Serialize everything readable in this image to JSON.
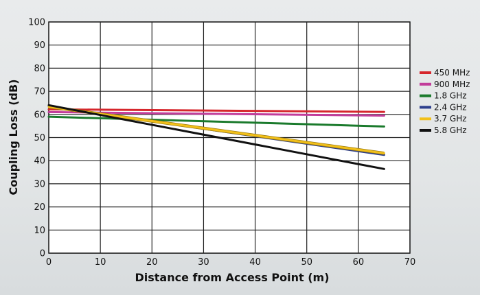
{
  "chart_data": {
    "type": "line",
    "xlabel": "Distance from Access Point (m)",
    "ylabel": "Coupling Loss (dB)",
    "xlim": [
      0,
      70
    ],
    "ylim": [
      0,
      100
    ],
    "xticks": [
      0,
      10,
      20,
      30,
      40,
      50,
      60,
      70
    ],
    "yticks": [
      0,
      10,
      20,
      30,
      40,
      50,
      60,
      70,
      80,
      90,
      100
    ],
    "grid": true,
    "legend_position": "right",
    "x": [
      0,
      65
    ],
    "series": [
      {
        "name": "450 MHz",
        "color": "#d6262c",
        "values": [
          62.2,
          61.1
        ]
      },
      {
        "name": "900 MHz",
        "color": "#c23c9a",
        "values": [
          61.0,
          59.5
        ]
      },
      {
        "name": "1.8 GHz",
        "color": "#1a7a2c",
        "values": [
          59.0,
          54.8
        ]
      },
      {
        "name": "2.4 GHz",
        "color": "#2c3e8c",
        "values": [
          63.5,
          42.5
        ]
      },
      {
        "name": "3.7 GHz",
        "color": "#f2c01a",
        "values": [
          63.3,
          43.2
        ]
      },
      {
        "name": "5.8 GHz",
        "color": "#111111",
        "values": [
          64.0,
          36.4
        ]
      }
    ]
  }
}
